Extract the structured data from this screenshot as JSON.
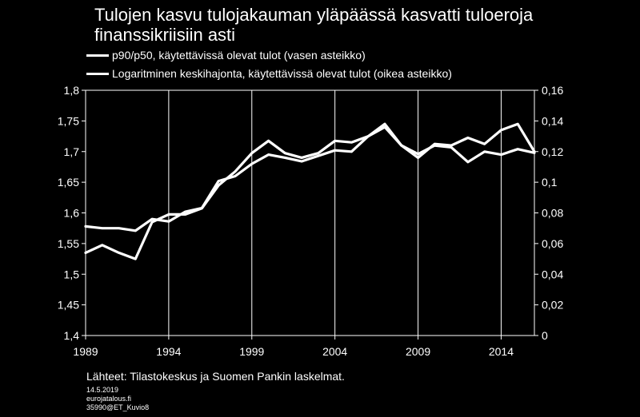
{
  "chart_data": {
    "type": "line",
    "title": "Tulojen kasvu tulojakauman yläpäässä kasvatti tuloeroja finanssikriisiin asti",
    "x": [
      1989,
      1990,
      1991,
      1992,
      1993,
      1994,
      1995,
      1996,
      1997,
      1998,
      1999,
      2000,
      2001,
      2002,
      2003,
      2004,
      2005,
      2006,
      2007,
      2008,
      2009,
      2010,
      2011,
      2012,
      2013,
      2014,
      2015,
      2016
    ],
    "x_ticks": [
      "1989",
      "1994",
      "1999",
      "2004",
      "2009",
      "2014"
    ],
    "y_left_ticks": [
      "1,4",
      "1,45",
      "1,5",
      "1,55",
      "1,6",
      "1,65",
      "1,7",
      "1,75",
      "1,8"
    ],
    "y_right_ticks": [
      "0",
      "0,02",
      "0,04",
      "0,06",
      "0,08",
      "0,1",
      "0,12",
      "0,14",
      "0,16"
    ],
    "ylim_left": [
      1.4,
      1.8
    ],
    "ylim_right": [
      0,
      0.16
    ],
    "grid": "vertical",
    "legend_position": "top",
    "series": [
      {
        "name": "p90/p50, käytettävissä olevat tulot  (vasen asteikko)",
        "axis": "left",
        "values": [
          1.578,
          1.575,
          1.575,
          1.571,
          1.59,
          1.586,
          1.602,
          1.608,
          1.652,
          1.66,
          1.68,
          1.695,
          1.69,
          1.684,
          1.693,
          1.702,
          1.7,
          1.725,
          1.74,
          1.71,
          1.696,
          1.71,
          1.707,
          1.683,
          1.7,
          1.695,
          1.704,
          1.698
        ]
      },
      {
        "name": "Logaritminen keskihajonta, käytettävissä olevat tulot  (oikea asteikko)",
        "axis": "right",
        "values": [
          0.054,
          0.059,
          0.054,
          0.05,
          0.074,
          0.079,
          0.079,
          0.083,
          0.098,
          0.107,
          0.119,
          0.127,
          0.119,
          0.116,
          0.119,
          0.127,
          0.126,
          0.13,
          0.138,
          0.124,
          0.116,
          0.125,
          0.124,
          0.129,
          0.125,
          0.134,
          0.138,
          0.12
        ]
      }
    ]
  },
  "source_text": "Lähteet: Tilastokeskus ja Suomen Pankin laskelmat.",
  "footer": {
    "date": "14.5.2019",
    "site": "eurojatalous.fi",
    "code": "35990@ET_Kuvio8"
  },
  "colors": {
    "background": "#000000",
    "line": "#ffffff",
    "grid": "#ffffff"
  }
}
